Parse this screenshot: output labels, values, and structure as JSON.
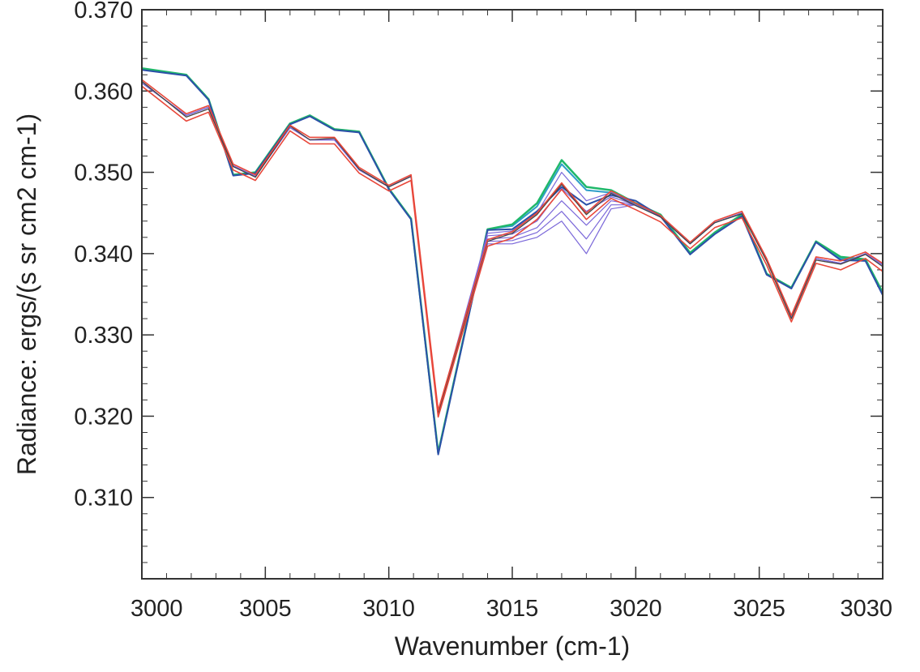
{
  "chart_data": {
    "type": "line",
    "xlabel": "Wavenumber (cm-1)",
    "ylabel": "Radiance: ergs/(s sr cm2 cm-1)",
    "xlim": [
      3000,
      3030
    ],
    "ylim": [
      0.3,
      0.37
    ],
    "xticks": [
      {
        "value": 3000,
        "label": "3000"
      },
      {
        "value": 3005,
        "label": "3005"
      },
      {
        "value": 3010,
        "label": "3010"
      },
      {
        "value": 3015,
        "label": "3015"
      },
      {
        "value": 3020,
        "label": "3020"
      },
      {
        "value": 3025,
        "label": "3025"
      },
      {
        "value": 3030,
        "label": "3030"
      }
    ],
    "yticks": [
      {
        "value": 0.31,
        "label": "0.310"
      },
      {
        "value": 0.32,
        "label": "0.320"
      },
      {
        "value": 0.33,
        "label": "0.330"
      },
      {
        "value": 0.34,
        "label": "0.340"
      },
      {
        "value": 0.35,
        "label": "0.350"
      },
      {
        "value": 0.36,
        "label": "0.360"
      },
      {
        "value": 0.37,
        "label": "0.370"
      }
    ],
    "x": [
      3000,
      3001.8,
      3002.7,
      3003.7,
      3004.6,
      3006,
      3006.8,
      3007.8,
      3008.8,
      3010,
      3010.9,
      3012,
      3014,
      3015,
      3016,
      3017,
      3018,
      3019,
      3020,
      3021,
      3022.2,
      3023.2,
      3024.3,
      3025.3,
      3026.3,
      3027.3,
      3028.3,
      3029.3,
      3030
    ],
    "series": [
      {
        "color": "#2e9ec8",
        "width": 2,
        "values": [
          0.3627,
          0.362,
          0.359,
          0.3497,
          0.35,
          0.356,
          0.357,
          0.3553,
          0.355,
          0.348,
          0.3443,
          0.3155,
          0.343,
          0.3434,
          0.3458,
          0.351,
          0.3478,
          0.3475,
          0.346,
          0.3447,
          0.34,
          0.3425,
          0.3447,
          0.3375,
          0.3358,
          0.3415,
          0.3394,
          0.3392,
          0.335
        ]
      },
      {
        "color": "#1fb86a",
        "width": 2.5,
        "values": [
          0.3628,
          0.362,
          0.359,
          0.3497,
          0.35,
          0.356,
          0.357,
          0.3553,
          0.355,
          0.348,
          0.3443,
          0.3155,
          0.343,
          0.3436,
          0.3462,
          0.3515,
          0.3482,
          0.3478,
          0.3462,
          0.3448,
          0.3401,
          0.3426,
          0.3448,
          0.3375,
          0.3358,
          0.3415,
          0.3396,
          0.3393,
          0.3352
        ]
      },
      {
        "color": "#2b4fa8",
        "width": 2,
        "values": [
          0.3626,
          0.3619,
          0.3589,
          0.3496,
          0.3499,
          0.3559,
          0.3569,
          0.3552,
          0.3549,
          0.3479,
          0.3442,
          0.3153,
          0.3429,
          0.343,
          0.3452,
          0.3482,
          0.346,
          0.3472,
          0.3465,
          0.3446,
          0.3399,
          0.3424,
          0.3446,
          0.3374,
          0.3357,
          0.3414,
          0.3392,
          0.3391,
          0.3349
        ]
      },
      {
        "color": "#7b68d9",
        "width": 1.2,
        "values": [
          0.361,
          0.357,
          0.358,
          0.3508,
          0.3495,
          0.3555,
          0.354,
          0.354,
          0.3503,
          0.3482,
          0.3495,
          0.3205,
          0.3425,
          0.3428,
          0.345,
          0.35,
          0.3465,
          0.3475,
          0.346,
          0.3445,
          0.3412,
          0.3438,
          0.345,
          0.3392,
          0.3322,
          0.3394,
          0.3388,
          0.34,
          0.3386
        ]
      },
      {
        "color": "#7b68d9",
        "width": 1.2,
        "values": [
          0.361,
          0.357,
          0.358,
          0.3508,
          0.3495,
          0.3555,
          0.354,
          0.354,
          0.3503,
          0.3482,
          0.3495,
          0.3205,
          0.3422,
          0.3424,
          0.344,
          0.348,
          0.3452,
          0.347,
          0.346,
          0.3445,
          0.3412,
          0.3438,
          0.345,
          0.3392,
          0.3322,
          0.3394,
          0.3388,
          0.34,
          0.3386
        ]
      },
      {
        "color": "#7b68d9",
        "width": 1.2,
        "values": [
          0.361,
          0.357,
          0.358,
          0.3508,
          0.3495,
          0.3555,
          0.354,
          0.354,
          0.3503,
          0.3482,
          0.3495,
          0.3205,
          0.3418,
          0.342,
          0.3432,
          0.3465,
          0.3435,
          0.3465,
          0.346,
          0.3445,
          0.3412,
          0.3438,
          0.345,
          0.3392,
          0.3322,
          0.3394,
          0.3388,
          0.34,
          0.3386
        ]
      },
      {
        "color": "#7b68d9",
        "width": 1.2,
        "values": [
          0.361,
          0.357,
          0.358,
          0.3508,
          0.3495,
          0.3555,
          0.354,
          0.354,
          0.3503,
          0.3482,
          0.3495,
          0.3205,
          0.3415,
          0.3416,
          0.3426,
          0.3452,
          0.3418,
          0.346,
          0.346,
          0.3445,
          0.3412,
          0.3438,
          0.345,
          0.3392,
          0.3322,
          0.3394,
          0.3388,
          0.34,
          0.3386
        ]
      },
      {
        "color": "#7b68d9",
        "width": 1.2,
        "values": [
          0.361,
          0.357,
          0.358,
          0.3508,
          0.3495,
          0.3555,
          0.354,
          0.354,
          0.3503,
          0.3482,
          0.3495,
          0.3205,
          0.3412,
          0.3412,
          0.342,
          0.344,
          0.34,
          0.3455,
          0.346,
          0.3445,
          0.3412,
          0.3438,
          0.345,
          0.3392,
          0.3322,
          0.3394,
          0.3388,
          0.34,
          0.3386
        ]
      },
      {
        "color": "#444444",
        "width": 1.3,
        "values": [
          0.3612,
          0.3568,
          0.3578,
          0.3507,
          0.3494,
          0.3557,
          0.354,
          0.3542,
          0.3504,
          0.3482,
          0.3495,
          0.3203,
          0.3415,
          0.3425,
          0.3448,
          0.3485,
          0.3448,
          0.3474,
          0.3459,
          0.3445,
          0.3412,
          0.3438,
          0.3449,
          0.3391,
          0.332,
          0.3392,
          0.3387,
          0.3399,
          0.3384
        ]
      },
      {
        "color": "#e8473a",
        "width": 1.6,
        "values": [
          0.3614,
          0.3572,
          0.3582,
          0.351,
          0.3497,
          0.3558,
          0.3543,
          0.3543,
          0.3506,
          0.3484,
          0.3497,
          0.3207,
          0.3417,
          0.3427,
          0.345,
          0.3487,
          0.345,
          0.3477,
          0.3462,
          0.3447,
          0.3414,
          0.344,
          0.3452,
          0.3394,
          0.3324,
          0.3396,
          0.3391,
          0.3402,
          0.3388
        ]
      },
      {
        "color": "#e8473a",
        "width": 1.6,
        "values": [
          0.3606,
          0.3563,
          0.3574,
          0.3503,
          0.349,
          0.3551,
          0.3535,
          0.3535,
          0.3499,
          0.3477,
          0.349,
          0.3199,
          0.3409,
          0.3419,
          0.3442,
          0.3479,
          0.3442,
          0.3468,
          0.3454,
          0.3439,
          0.3406,
          0.3432,
          0.3444,
          0.3386,
          0.3316,
          0.3388,
          0.338,
          0.3394,
          0.3378
        ]
      }
    ]
  }
}
